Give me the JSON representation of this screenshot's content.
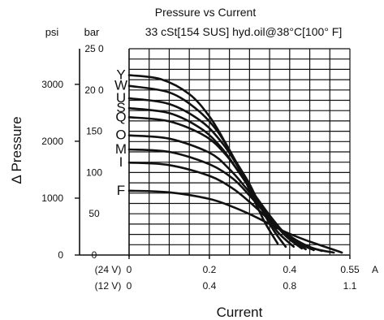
{
  "chart_data": {
    "type": "line",
    "title": "Pressure vs Current",
    "subtitle": "33 cSt[154 SUS] hyd.oil@38°C[100° F]",
    "ylabel": "Δ Pressure",
    "xlabel": "Current",
    "y_units": {
      "psi": "psi",
      "bar": "bar"
    },
    "x_unit": "A",
    "psi_ticks": [
      "0",
      "1000",
      "2000",
      "3000"
    ],
    "bar_ticks": [
      "0",
      "50",
      "100",
      "150",
      "20 0",
      "25 0"
    ],
    "x_ticks_24v": [
      "0",
      "0.2",
      "0.4",
      "0.55"
    ],
    "x_ticks_12v": [
      "0",
      "0.4",
      "0.8",
      "1.1"
    ],
    "x_row_labels": {
      "v24": "(24 V)",
      "v12": "(12 V)"
    },
    "xlim": [
      0,
      0.55
    ],
    "ylim_bar": [
      0,
      250
    ],
    "grid": true,
    "series": [
      {
        "name": "F",
        "points": [
          [
            0,
            78
          ],
          [
            0.1,
            76
          ],
          [
            0.2,
            68
          ],
          [
            0.26,
            58
          ],
          [
            0.32,
            45
          ],
          [
            0.38,
            30
          ],
          [
            0.44,
            18
          ],
          [
            0.5,
            8
          ],
          [
            0.53,
            3
          ]
        ]
      },
      {
        "name": "I",
        "points": [
          [
            0,
            112
          ],
          [
            0.1,
            109
          ],
          [
            0.2,
            96
          ],
          [
            0.26,
            80
          ],
          [
            0.31,
            60
          ],
          [
            0.36,
            38
          ],
          [
            0.41,
            20
          ],
          [
            0.46,
            8
          ],
          [
            0.51,
            3
          ]
        ]
      },
      {
        "name": "M",
        "points": [
          [
            0,
            128
          ],
          [
            0.1,
            125
          ],
          [
            0.2,
            110
          ],
          [
            0.26,
            92
          ],
          [
            0.3,
            72
          ],
          [
            0.34,
            50
          ],
          [
            0.38,
            30
          ],
          [
            0.42,
            15
          ],
          [
            0.48,
            5
          ]
        ]
      },
      {
        "name": "O",
        "points": [
          [
            0,
            145
          ],
          [
            0.1,
            141
          ],
          [
            0.2,
            124
          ],
          [
            0.25,
            104
          ],
          [
            0.29,
            82
          ],
          [
            0.33,
            58
          ],
          [
            0.37,
            35
          ],
          [
            0.41,
            17
          ],
          [
            0.46,
            6
          ]
        ]
      },
      {
        "name": "Q",
        "points": [
          [
            0,
            167
          ],
          [
            0.1,
            162
          ],
          [
            0.19,
            144
          ],
          [
            0.24,
            122
          ],
          [
            0.28,
            96
          ],
          [
            0.32,
            68
          ],
          [
            0.36,
            42
          ],
          [
            0.4,
            20
          ],
          [
            0.44,
            7
          ]
        ]
      },
      {
        "name": "S",
        "points": [
          [
            0,
            178
          ],
          [
            0.1,
            172
          ],
          [
            0.18,
            153
          ],
          [
            0.23,
            130
          ],
          [
            0.27,
            103
          ],
          [
            0.31,
            74
          ],
          [
            0.35,
            46
          ],
          [
            0.39,
            23
          ],
          [
            0.43,
            8
          ]
        ]
      },
      {
        "name": "U",
        "points": [
          [
            0,
            190
          ],
          [
            0.1,
            183
          ],
          [
            0.18,
            162
          ],
          [
            0.23,
            137
          ],
          [
            0.27,
            108
          ],
          [
            0.3,
            80
          ],
          [
            0.34,
            50
          ],
          [
            0.37,
            28
          ],
          [
            0.41,
            10
          ]
        ]
      },
      {
        "name": "W",
        "points": [
          [
            0,
            205
          ],
          [
            0.1,
            197
          ],
          [
            0.17,
            176
          ],
          [
            0.22,
            150
          ],
          [
            0.26,
            118
          ],
          [
            0.3,
            86
          ],
          [
            0.33,
            56
          ],
          [
            0.36,
            30
          ],
          [
            0.39,
            10
          ]
        ]
      },
      {
        "name": "Y",
        "points": [
          [
            0,
            218
          ],
          [
            0.08,
            213
          ],
          [
            0.15,
            195
          ],
          [
            0.2,
            168
          ],
          [
            0.24,
            136
          ],
          [
            0.28,
            100
          ],
          [
            0.31,
            68
          ],
          [
            0.34,
            38
          ],
          [
            0.37,
            14
          ]
        ]
      }
    ]
  }
}
